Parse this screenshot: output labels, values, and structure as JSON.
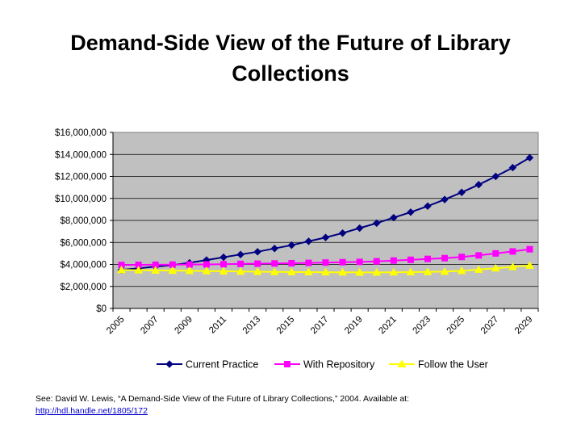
{
  "title_line1": "Demand-Side View of the Future of Library",
  "title_line2": "Collections",
  "footer": {
    "citation": "See: David W. Lewis, “A Demand-Side View of the Future of Library Collections,” 2004.  Available at:",
    "link_text": "http://hdl.handle.net/1805/172"
  },
  "chart_data": {
    "type": "line",
    "x": [
      2005,
      2006,
      2007,
      2008,
      2009,
      2010,
      2011,
      2012,
      2013,
      2014,
      2015,
      2016,
      2017,
      2018,
      2019,
      2020,
      2021,
      2022,
      2023,
      2024,
      2025,
      2026,
      2027,
      2028,
      2029
    ],
    "x_tick_labels": [
      "2005",
      "2007",
      "2009",
      "2011",
      "2013",
      "2015",
      "2017",
      "2019",
      "2021",
      "2023",
      "2025",
      "2027",
      "2029"
    ],
    "y_tick_labels": [
      "$0",
      "$2,000,000",
      "$4,000,000",
      "$6,000,000",
      "$8,000,000",
      "$10,000,000",
      "$12,000,000",
      "$14,000,000",
      "$16,000,000"
    ],
    "ylim": [
      0,
      16000000
    ],
    "y_step": 2000000,
    "grid": true,
    "plot_background": "#c0c0c0",
    "legend_position": "bottom",
    "series": [
      {
        "name": "Current Practice",
        "color": "#000080",
        "marker": "diamond",
        "values": [
          3500000,
          3650000,
          3800000,
          3950000,
          4150000,
          4400000,
          4650000,
          4900000,
          5150000,
          5450000,
          5750000,
          6100000,
          6450000,
          6850000,
          7300000,
          7750000,
          8250000,
          8750000,
          9300000,
          9900000,
          10550000,
          11250000,
          12000000,
          12800000,
          13700000
        ]
      },
      {
        "name": "With Repository",
        "color": "#ff00ff",
        "marker": "square",
        "values": [
          3950000,
          3960000,
          3970000,
          3980000,
          3990000,
          4000000,
          4020000,
          4050000,
          4070000,
          4090000,
          4110000,
          4140000,
          4170000,
          4200000,
          4230000,
          4280000,
          4350000,
          4420000,
          4500000,
          4570000,
          4680000,
          4820000,
          5000000,
          5180000,
          5380000
        ]
      },
      {
        "name": "Follow the User",
        "color": "#ffff00",
        "marker": "triangle",
        "values": [
          3500000,
          3480000,
          3460000,
          3440000,
          3420000,
          3400000,
          3380000,
          3360000,
          3340000,
          3320000,
          3310000,
          3300000,
          3290000,
          3280000,
          3270000,
          3270000,
          3280000,
          3300000,
          3320000,
          3350000,
          3420000,
          3530000,
          3650000,
          3780000,
          3900000
        ]
      }
    ]
  }
}
